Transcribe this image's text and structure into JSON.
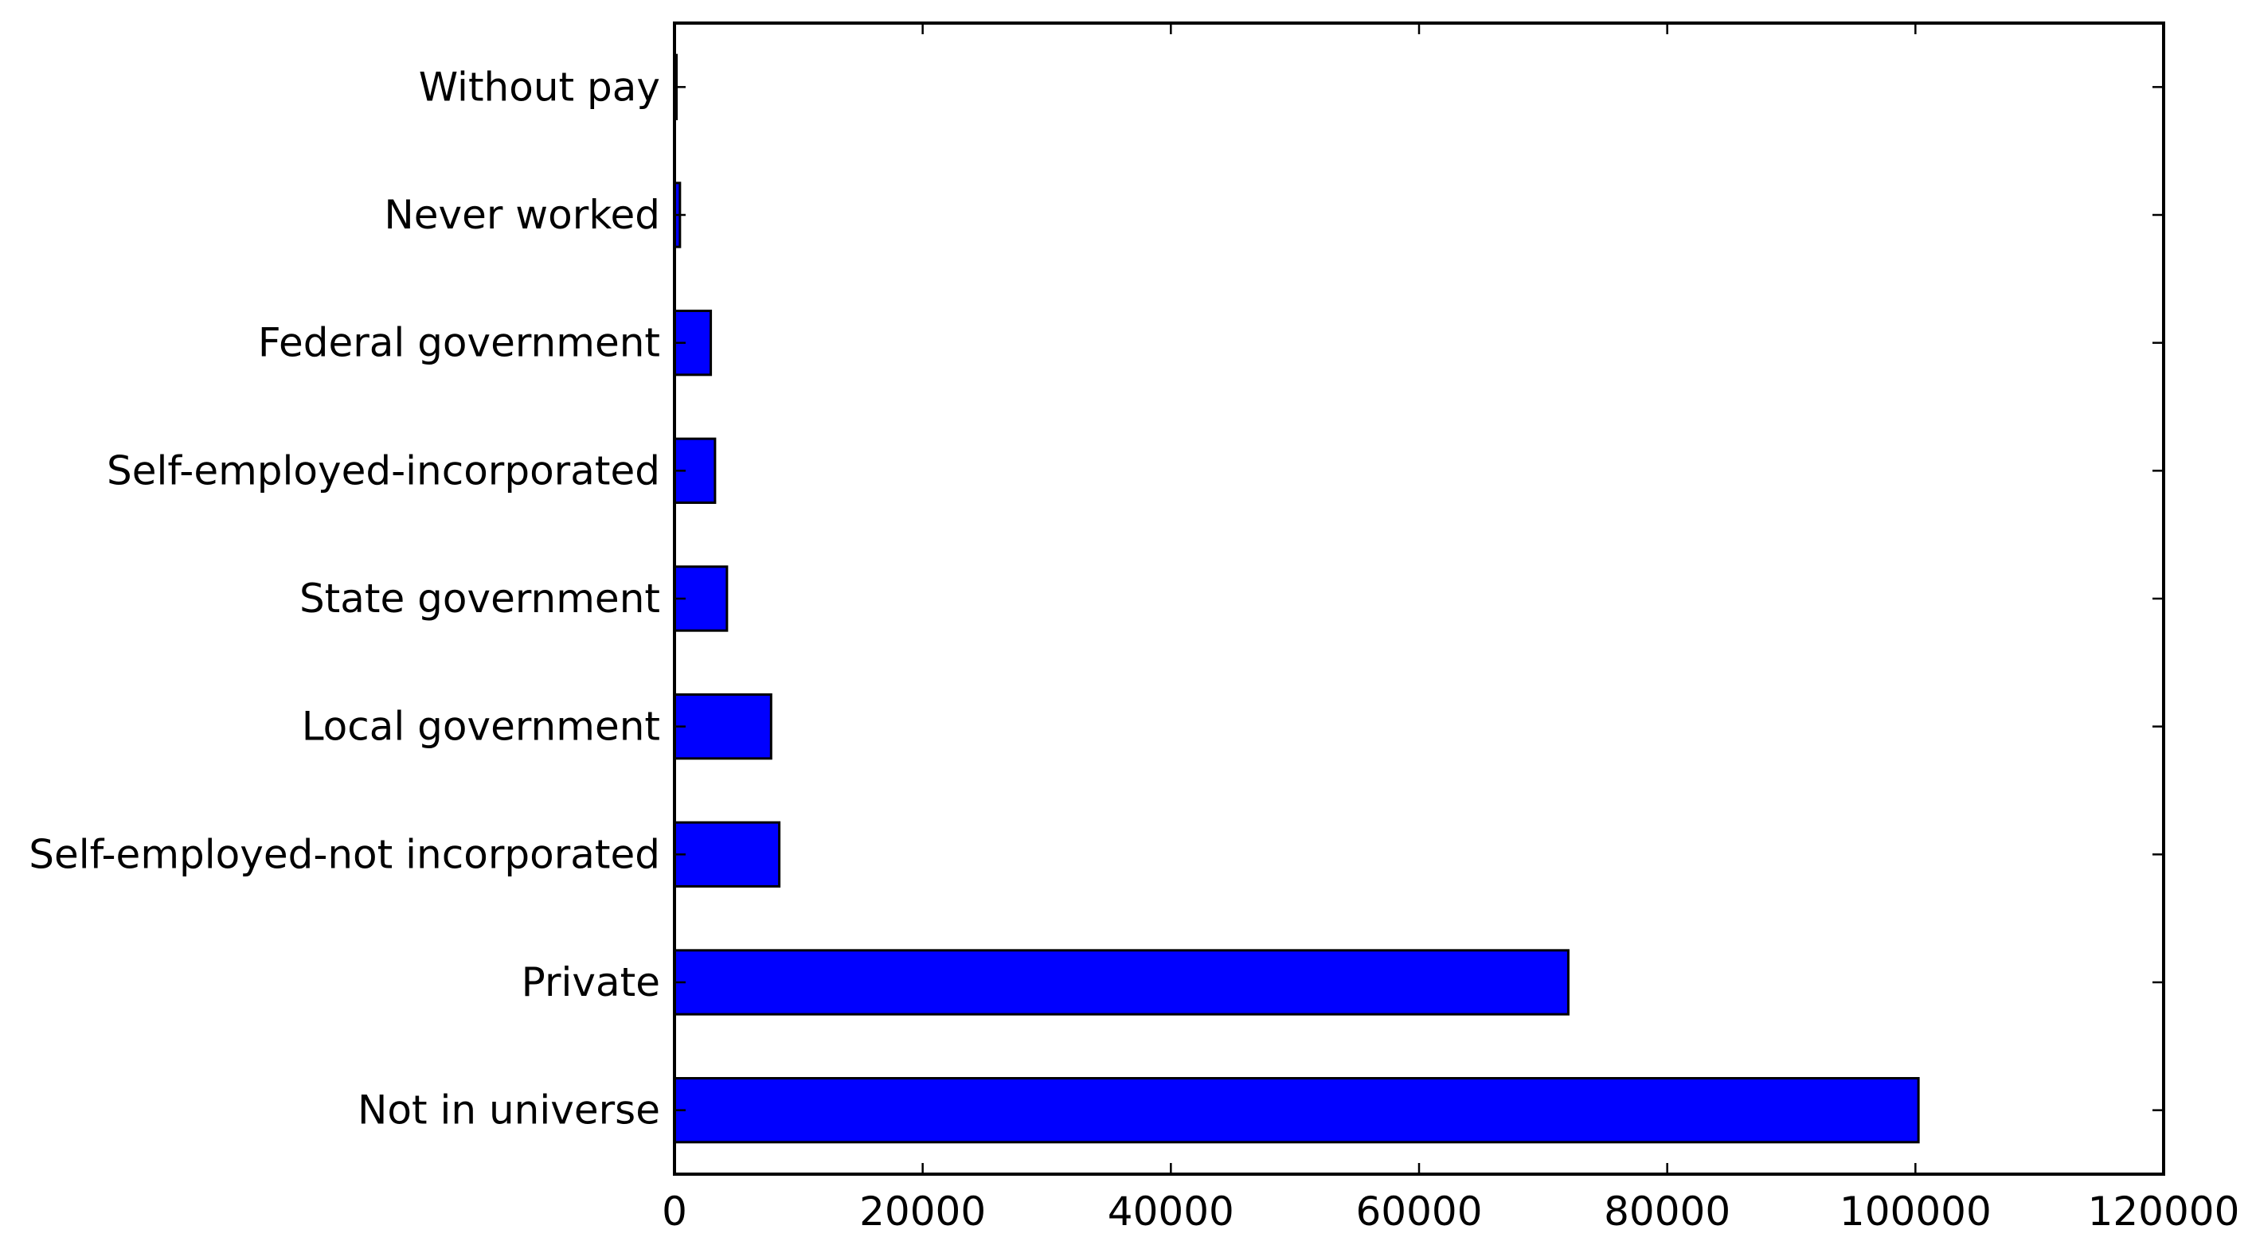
{
  "chart_data": {
    "type": "bar",
    "orientation": "horizontal",
    "title": "",
    "xlabel": "",
    "ylabel": "",
    "categories": [
      "Not in universe",
      "Private",
      "Self-employed-not incorporated",
      "Local government",
      "State government",
      "Self-employed-incorporated",
      "Federal government",
      "Never worked",
      "Without pay"
    ],
    "values": [
      100245,
      72028,
      8445,
      7784,
      4227,
      3265,
      2925,
      439,
      165
    ],
    "xlim": [
      0,
      120000
    ],
    "xticks": [
      0,
      20000,
      40000,
      60000,
      80000,
      100000,
      120000
    ],
    "xtick_labels": [
      "0",
      "20000",
      "40000",
      "60000",
      "80000",
      "100000",
      "120000"
    ],
    "grid": false,
    "legend": "none",
    "colors": {
      "bar_fill": "#0000ff",
      "bar_edge": "#000000",
      "axes": "#000000",
      "background": "#ffffff"
    }
  }
}
